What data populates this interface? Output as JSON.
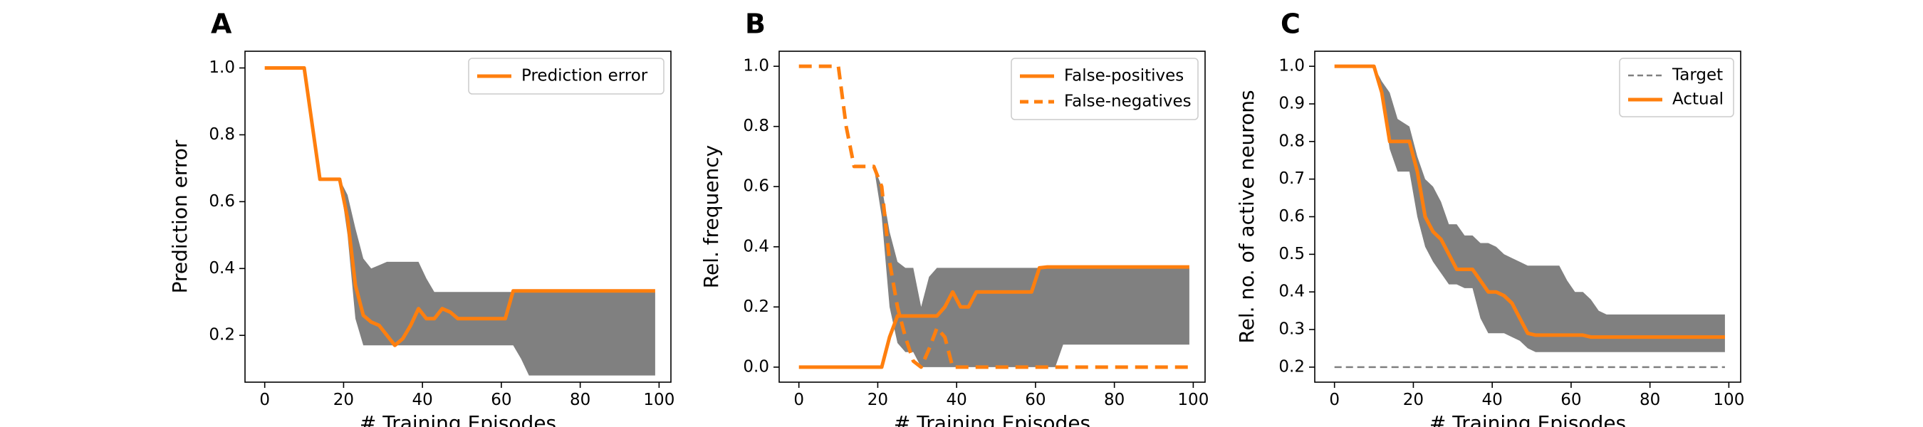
{
  "colors": {
    "accent": "#ff7f0e",
    "band": "#808080",
    "target": "#808080"
  },
  "chart_data": [
    {
      "type": "line",
      "panel_label": "A",
      "xlabel": "# Training Episodes",
      "ylabel": "Prediction error",
      "xlim": [
        -5,
        103
      ],
      "ylim": [
        0.06,
        1.05
      ],
      "xticks": [
        0,
        20,
        40,
        60,
        80,
        100
      ],
      "xtick_labels": [
        "0",
        "20",
        "40",
        "60",
        "80",
        "100"
      ],
      "yticks": [
        0.2,
        0.4,
        0.6,
        0.8,
        1.0
      ],
      "ytick_labels": [
        "0.2",
        "0.4",
        "0.6",
        "0.8",
        "1.0"
      ],
      "legend": {
        "position": "top-right",
        "entries": [
          "Prediction error"
        ]
      },
      "band": {
        "x": [
          19,
          21,
          23,
          25,
          27,
          29,
          31,
          33,
          35,
          37,
          39,
          41,
          43,
          45,
          47,
          49,
          51,
          53,
          55,
          57,
          59,
          61,
          63,
          65,
          67,
          69,
          99
        ],
        "upper": [
          0.667,
          0.62,
          0.52,
          0.43,
          0.4,
          0.41,
          0.42,
          0.42,
          0.42,
          0.42,
          0.42,
          0.37,
          0.33,
          0.33,
          0.33,
          0.33,
          0.33,
          0.33,
          0.33,
          0.33,
          0.33,
          0.33,
          0.33,
          0.33,
          0.33,
          0.33,
          0.33
        ],
        "lower": [
          0.667,
          0.5,
          0.25,
          0.17,
          0.17,
          0.17,
          0.17,
          0.17,
          0.17,
          0.17,
          0.17,
          0.17,
          0.17,
          0.17,
          0.17,
          0.17,
          0.17,
          0.17,
          0.17,
          0.17,
          0.17,
          0.17,
          0.17,
          0.13,
          0.08,
          0.08,
          0.08
        ]
      },
      "series": [
        {
          "name": "Prediction error",
          "style": "solid",
          "x": [
            0,
            10,
            14,
            19,
            21,
            23,
            25,
            27,
            29,
            31,
            33,
            35,
            37,
            39,
            41,
            43,
            45,
            47,
            49,
            51,
            53,
            55,
            57,
            59,
            61,
            63,
            65,
            99
          ],
          "y": [
            1.0,
            1.0,
            0.667,
            0.667,
            0.55,
            0.35,
            0.26,
            0.24,
            0.23,
            0.2,
            0.17,
            0.19,
            0.23,
            0.28,
            0.25,
            0.25,
            0.28,
            0.27,
            0.25,
            0.25,
            0.25,
            0.25,
            0.25,
            0.25,
            0.25,
            0.333,
            0.333,
            0.333
          ]
        }
      ]
    },
    {
      "type": "line",
      "panel_label": "B",
      "xlabel": "# Training Episodes",
      "ylabel": "Rel. frequency",
      "xlim": [
        -5,
        103
      ],
      "ylim": [
        -0.05,
        1.05
      ],
      "xticks": [
        0,
        20,
        40,
        60,
        80,
        100
      ],
      "xtick_labels": [
        "0",
        "20",
        "40",
        "60",
        "80",
        "100"
      ],
      "yticks": [
        0.0,
        0.2,
        0.4,
        0.6,
        0.8,
        1.0
      ],
      "ytick_labels": [
        "0.0",
        "0.2",
        "0.4",
        "0.6",
        "0.8",
        "1.0"
      ],
      "legend": {
        "position": "top-right",
        "entries": [
          "False-positives",
          "False-negatives"
        ]
      },
      "band": {
        "x": [
          19,
          21,
          23,
          25,
          27,
          29,
          31,
          33,
          35,
          37,
          39,
          41,
          43,
          45,
          47,
          49,
          51,
          53,
          55,
          57,
          59,
          61,
          63,
          65,
          67,
          99
        ],
        "upper": [
          0.667,
          0.6,
          0.45,
          0.35,
          0.33,
          0.33,
          0.2,
          0.3,
          0.33,
          0.33,
          0.33,
          0.33,
          0.33,
          0.33,
          0.33,
          0.33,
          0.33,
          0.33,
          0.33,
          0.33,
          0.33,
          0.33,
          0.33,
          0.33,
          0.33,
          0.33
        ],
        "lower": [
          0.667,
          0.5,
          0.2,
          0.08,
          0.05,
          0.05,
          0.0,
          0.0,
          0.0,
          0.0,
          0.0,
          0.0,
          0.0,
          0.0,
          0.0,
          0.0,
          0.0,
          0.0,
          0.0,
          0.0,
          0.0,
          0.0,
          0.0,
          0.0,
          0.075,
          0.075
        ]
      },
      "series": [
        {
          "name": "False-positives",
          "style": "solid",
          "x": [
            0,
            21,
            23,
            25,
            27,
            29,
            31,
            33,
            35,
            37,
            39,
            41,
            43,
            45,
            47,
            49,
            51,
            53,
            55,
            57,
            59,
            61,
            63,
            65,
            99
          ],
          "y": [
            0.0,
            0.0,
            0.1,
            0.17,
            0.17,
            0.17,
            0.17,
            0.17,
            0.17,
            0.2,
            0.25,
            0.2,
            0.2,
            0.25,
            0.25,
            0.25,
            0.25,
            0.25,
            0.25,
            0.25,
            0.25,
            0.33,
            0.333,
            0.333,
            0.333
          ]
        },
        {
          "name": "False-negatives",
          "style": "dashed",
          "x": [
            0,
            10,
            12,
            14,
            16,
            19,
            21,
            23,
            25,
            27,
            29,
            31,
            33,
            35,
            37,
            39,
            41,
            99
          ],
          "y": [
            1.0,
            1.0,
            0.8,
            0.667,
            0.667,
            0.667,
            0.6,
            0.35,
            0.2,
            0.1,
            0.02,
            0.0,
            0.06,
            0.13,
            0.1,
            0.0,
            0.0,
            0.0
          ]
        }
      ]
    },
    {
      "type": "line",
      "panel_label": "C",
      "xlabel": "# Training Episodes",
      "ylabel": "Rel. no. of active neurons",
      "xlim": [
        -5,
        103
      ],
      "ylim": [
        0.16,
        1.04
      ],
      "xticks": [
        0,
        20,
        40,
        60,
        80,
        100
      ],
      "xtick_labels": [
        "0",
        "20",
        "40",
        "60",
        "80",
        "100"
      ],
      "yticks": [
        0.2,
        0.3,
        0.4,
        0.5,
        0.6,
        0.7,
        0.8,
        0.9,
        1.0
      ],
      "ytick_labels": [
        "0.2",
        "0.3",
        "0.4",
        "0.5",
        "0.6",
        "0.7",
        "0.8",
        "0.9",
        "1.0"
      ],
      "legend": {
        "position": "top-right",
        "entries": [
          "Target",
          "Actual"
        ]
      },
      "band": {
        "x": [
          0,
          10,
          12,
          14,
          16,
          19,
          21,
          23,
          25,
          27,
          29,
          31,
          33,
          35,
          37,
          39,
          41,
          43,
          45,
          47,
          49,
          51,
          53,
          55,
          57,
          59,
          61,
          63,
          65,
          67,
          69,
          99
        ],
        "upper": [
          1.0,
          1.0,
          0.96,
          0.93,
          0.86,
          0.84,
          0.76,
          0.7,
          0.68,
          0.64,
          0.58,
          0.58,
          0.55,
          0.55,
          0.53,
          0.53,
          0.52,
          0.5,
          0.49,
          0.48,
          0.47,
          0.47,
          0.47,
          0.47,
          0.47,
          0.43,
          0.4,
          0.4,
          0.38,
          0.35,
          0.34,
          0.34
        ],
        "lower": [
          1.0,
          1.0,
          0.92,
          0.78,
          0.72,
          0.72,
          0.6,
          0.52,
          0.48,
          0.45,
          0.42,
          0.42,
          0.41,
          0.41,
          0.33,
          0.29,
          0.29,
          0.29,
          0.28,
          0.27,
          0.25,
          0.24,
          0.24,
          0.24,
          0.24,
          0.24,
          0.24,
          0.24,
          0.24,
          0.24,
          0.24,
          0.24
        ]
      },
      "series": [
        {
          "name": "Target",
          "style": "dashed-thin",
          "x": [
            0,
            99
          ],
          "y": [
            0.2,
            0.2
          ]
        },
        {
          "name": "Actual",
          "style": "solid",
          "x": [
            0,
            10,
            12,
            14,
            16,
            19,
            21,
            23,
            25,
            27,
            29,
            31,
            33,
            35,
            37,
            39,
            41,
            43,
            45,
            47,
            49,
            51,
            53,
            55,
            57,
            59,
            61,
            63,
            65,
            67,
            69,
            99
          ],
          "y": [
            1.0,
            1.0,
            0.93,
            0.8,
            0.8,
            0.8,
            0.72,
            0.6,
            0.56,
            0.54,
            0.5,
            0.46,
            0.46,
            0.46,
            0.43,
            0.4,
            0.4,
            0.39,
            0.37,
            0.33,
            0.29,
            0.285,
            0.285,
            0.285,
            0.285,
            0.285,
            0.285,
            0.285,
            0.28,
            0.28,
            0.28,
            0.28
          ]
        }
      ]
    }
  ]
}
